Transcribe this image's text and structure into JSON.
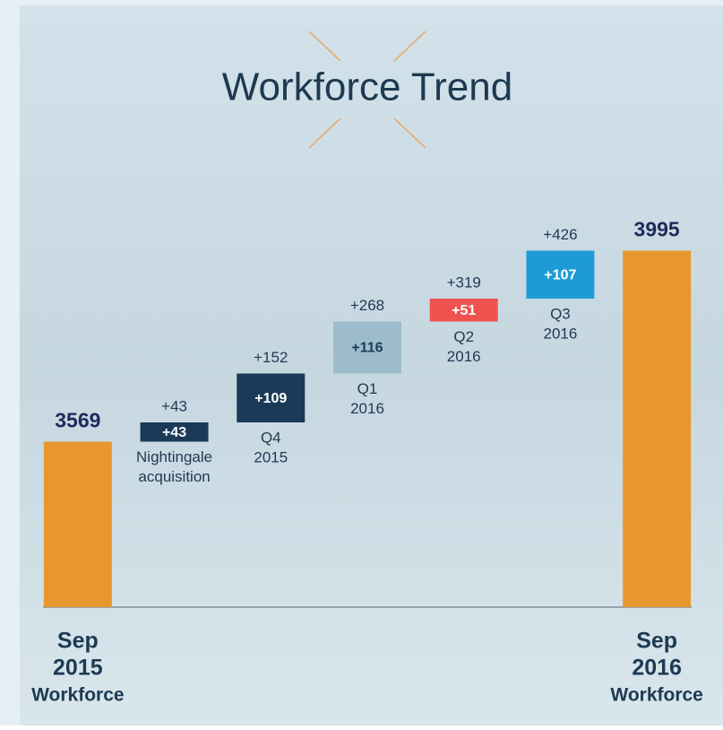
{
  "chart_data": {
    "type": "waterfall",
    "title": "Workforce Trend",
    "categories": [
      [
        "Sep",
        "2015",
        "Workforce"
      ],
      [
        "Nightingale",
        "acquisition"
      ],
      [
        "Q4",
        "2015"
      ],
      [
        "Q1",
        "2016"
      ],
      [
        "Q2",
        "2016"
      ],
      [
        "Q3",
        "2016"
      ],
      [
        "Sep",
        "2016",
        "Workforce"
      ]
    ],
    "measure": [
      "total",
      "relative",
      "relative",
      "relative",
      "relative",
      "relative",
      "total"
    ],
    "values": [
      3569,
      43,
      109,
      116,
      51,
      107,
      3995
    ],
    "value_labels": [
      "3569",
      "+43",
      "+109",
      "+116",
      "+51",
      "+107",
      "3995"
    ],
    "cumulative_labels": [
      null,
      "+43",
      "+152",
      "+268",
      "+319",
      "+426",
      null
    ],
    "colors": [
      "#e8972e",
      "#1b3a57",
      "#1b3a57",
      "#9dbdcd",
      "#ef5350",
      "#1e9bd7",
      "#e8972e"
    ],
    "ylim": [
      3200,
      4050
    ]
  }
}
